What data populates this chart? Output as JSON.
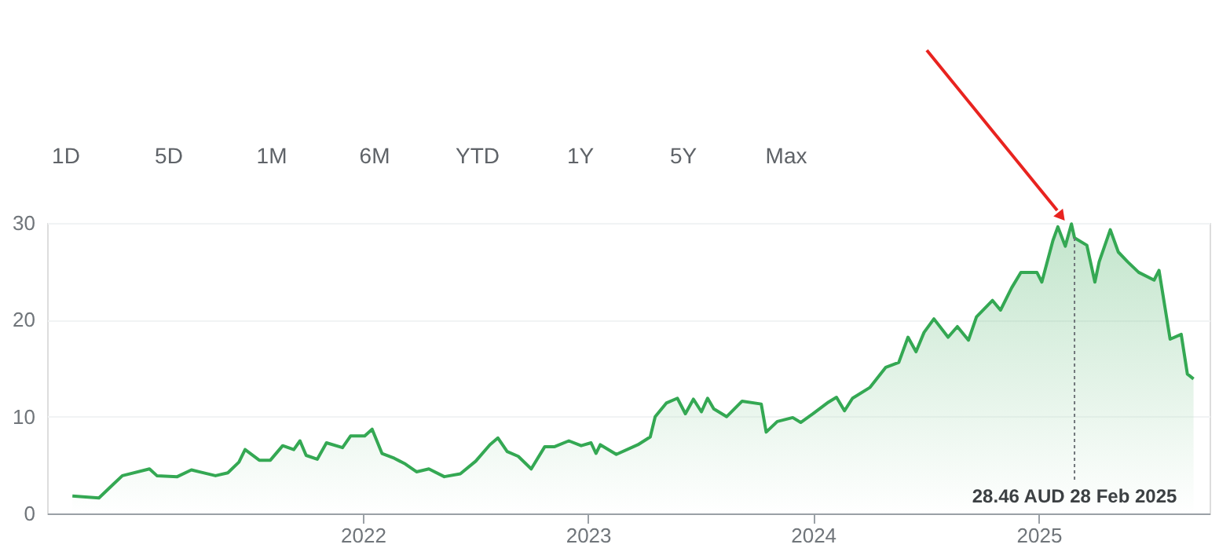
{
  "chart_data": {
    "type": "area",
    "series": [
      {
        "color": "#34a853",
        "x": [
          "2020-09-17",
          "2020-10-30",
          "2020-11-22",
          "2020-12-07",
          "2021-01-20",
          "2021-02-01",
          "2021-03-06",
          "2021-03-29",
          "2021-05-07",
          "2021-05-27",
          "2021-06-14",
          "2021-06-24",
          "2021-07-17",
          "2021-08-04",
          "2021-08-24",
          "2021-09-11",
          "2021-09-21",
          "2021-10-01",
          "2021-10-19",
          "2021-11-03",
          "2021-11-29",
          "2021-12-12",
          "2022-01-04",
          "2022-01-16",
          "2022-02-01",
          "2022-02-21",
          "2022-03-11",
          "2022-03-29",
          "2022-04-18",
          "2022-05-13",
          "2022-06-08",
          "2022-07-03",
          "2022-07-26",
          "2022-08-08",
          "2022-08-23",
          "2022-09-10",
          "2022-10-01",
          "2022-10-23",
          "2022-11-08",
          "2022-12-01",
          "2022-12-21",
          "2023-01-06",
          "2023-01-14",
          "2023-01-21",
          "2023-02-16",
          "2023-03-23",
          "2023-04-12",
          "2023-04-20",
          "2023-05-08",
          "2023-05-26",
          "2023-06-08",
          "2023-06-21",
          "2023-07-04",
          "2023-07-14",
          "2023-07-24",
          "2023-08-14",
          "2023-09-08",
          "2023-10-09",
          "2023-10-17",
          "2023-11-04",
          "2023-11-29",
          "2023-12-12",
          "2024-01-01",
          "2024-01-26",
          "2024-02-08",
          "2024-02-21",
          "2024-03-05",
          "2024-04-02",
          "2024-04-28",
          "2024-05-19",
          "2024-06-03",
          "2024-06-16",
          "2024-06-29",
          "2024-07-15",
          "2024-08-07",
          "2024-08-22",
          "2024-09-09",
          "2024-09-22",
          "2024-10-18",
          "2024-10-31",
          "2024-11-18",
          "2024-12-03",
          "2024-12-29",
          "2025-01-06",
          "2025-01-24",
          "2025-02-01",
          "2025-02-13",
          "2025-02-23",
          "2025-02-28",
          "2025-03-20",
          "2025-04-02",
          "2025-04-09",
          "2025-04-27",
          "2025-05-10",
          "2025-05-25",
          "2025-06-12",
          "2025-07-07",
          "2025-07-15",
          "2025-08-02",
          "2025-08-20",
          "2025-08-30",
          "2025-09-09"
        ],
        "values": [
          1.8,
          1.6,
          3.0,
          3.9,
          4.6,
          3.9,
          3.8,
          4.5,
          3.9,
          4.2,
          5.3,
          6.6,
          5.5,
          5.5,
          7.0,
          6.6,
          7.5,
          6.0,
          5.6,
          7.3,
          6.8,
          8.0,
          8.0,
          8.7,
          6.2,
          5.7,
          5.1,
          4.3,
          4.6,
          3.8,
          4.1,
          5.4,
          7.1,
          7.8,
          6.4,
          5.9,
          4.6,
          6.9,
          6.9,
          7.5,
          7.0,
          7.3,
          6.2,
          7.1,
          6.1,
          7.1,
          7.9,
          10.0,
          11.4,
          11.9,
          10.3,
          11.8,
          10.5,
          11.9,
          10.8,
          10.0,
          11.6,
          11.3,
          8.4,
          9.5,
          9.9,
          9.4,
          10.3,
          11.5,
          12.0,
          10.6,
          11.9,
          13.0,
          15.1,
          15.6,
          18.2,
          16.7,
          18.7,
          20.1,
          18.2,
          19.3,
          17.9,
          20.3,
          22.0,
          21.0,
          23.3,
          24.9,
          24.9,
          23.9,
          28.2,
          29.6,
          27.6,
          29.9,
          28.46,
          27.7,
          23.9,
          26.0,
          29.3,
          27.0,
          26.0,
          24.9,
          24.1,
          25.1,
          18.0,
          18.5,
          14.4,
          13.9
        ]
      }
    ],
    "xlim": [
      "2020-08-07",
      "2025-10-05"
    ],
    "xticks": [
      "2022",
      "2023",
      "2024",
      "2025"
    ],
    "ylim": [
      0,
      30
    ],
    "yticks": [
      0,
      10,
      20,
      30
    ],
    "grid": "y",
    "annotations": [
      "1D",
      "5D",
      "1M",
      "6M",
      "YTD",
      "1Y",
      "5Y",
      "Max",
      {
        "text": "28.46 AUD  28 Feb 2025",
        "x": "2025-02-28",
        "y": 28.46
      }
    ]
  }
}
